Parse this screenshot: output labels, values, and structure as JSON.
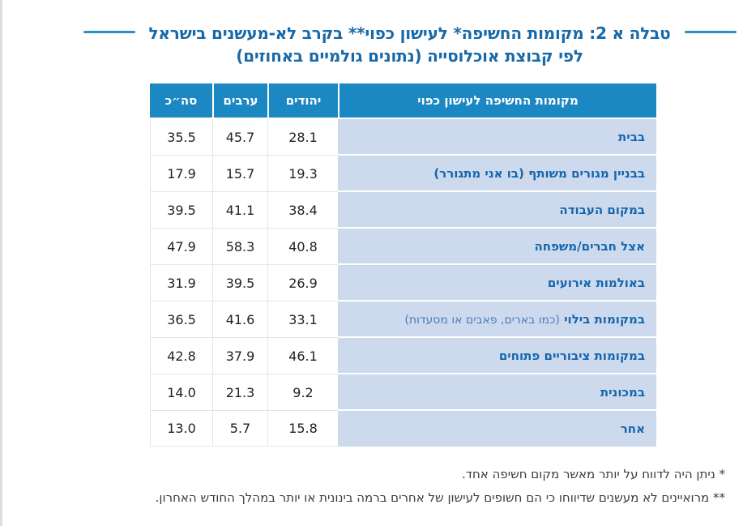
{
  "page": {
    "background": "#ffffff",
    "edge_line_color": "#dedee2"
  },
  "title": {
    "line1": "טבלה א 2: מקומות החשיפה* לעישון כפוי** בקרב לא-מעשנים בישראל",
    "line2": "לפי קבוצת אוכלוסייה (נתונים גולמיים באחוזים)",
    "text_color": "#1769a9",
    "rule_color": "#2e8fc4"
  },
  "table": {
    "headers": {
      "place": "מקומות החשיפה לעישון כפוי",
      "jews": "יהודים",
      "arabs": "ערבים",
      "total": "סה״כ"
    },
    "header_bg": "#1b87c3",
    "header_text_color": "#ffffff",
    "label_bg": "#cddaee",
    "label_text_color": "#1466ad",
    "note_text_color": "#4a7cb8",
    "rows": [
      {
        "place": "בבית",
        "note": "",
        "jews": "28.1",
        "arabs": "45.7",
        "total": "35.5"
      },
      {
        "place": "בבניין מגורים משותף (בו אני מתגורר)",
        "note": "",
        "jews": "19.3",
        "arabs": "15.7",
        "total": "17.9"
      },
      {
        "place": "במקום העבודה",
        "note": "",
        "jews": "38.4",
        "arabs": "41.1",
        "total": "39.5"
      },
      {
        "place": "אצל חברים/משפחה",
        "note": "",
        "jews": "40.8",
        "arabs": "58.3",
        "total": "47.9"
      },
      {
        "place": "באולמות אירועים",
        "note": "",
        "jews": "26.9",
        "arabs": "39.5",
        "total": "31.9"
      },
      {
        "place": "במקומות בילוי",
        "note": "(כמו בארים, פאבים או מסעדות)",
        "jews": "33.1",
        "arabs": "41.6",
        "total": "36.5"
      },
      {
        "place": "במקומות ציבוריים פתוחים",
        "note": "",
        "jews": "46.1",
        "arabs": "37.9",
        "total": "42.8"
      },
      {
        "place": "במכונית",
        "note": "",
        "jews": "9.2",
        "arabs": "21.3",
        "total": "14.0"
      },
      {
        "place": "אחר",
        "note": "",
        "jews": "15.8",
        "arabs": "5.7",
        "total": "13.0"
      }
    ]
  },
  "footnotes": [
    "* ניתן היה לדווח על יותר מאשר מקום חשיפה אחד.",
    "** מרואיינים לא מעשנים שדיווחו כי הם חשופים לעישון של אחרים ברמה בינונית או יותר במהלך החודש האחרון."
  ]
}
